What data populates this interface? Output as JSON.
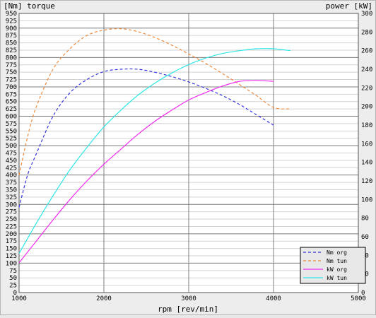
{
  "chart_data": {
    "type": "line",
    "title_left": "[Nm] torque",
    "title_right": "power [kW]",
    "xlabel": "rpm [rev/min]",
    "x_axis": {
      "ticks": [
        1000,
        2000,
        3000,
        4000,
        5000
      ],
      "range": [
        1000,
        5000
      ]
    },
    "y_left": {
      "range": [
        0,
        950
      ],
      "ticks": [
        0,
        25,
        50,
        75,
        100,
        125,
        150,
        175,
        200,
        225,
        250,
        275,
        300,
        325,
        350,
        375,
        400,
        425,
        450,
        475,
        500,
        525,
        550,
        575,
        600,
        625,
        650,
        675,
        700,
        725,
        750,
        775,
        800,
        825,
        850,
        875,
        900,
        925,
        950
      ]
    },
    "y_right": {
      "range": [
        0,
        300
      ],
      "ticks": [
        0,
        20,
        40,
        60,
        80,
        100,
        120,
        140,
        160,
        180,
        200,
        220,
        240,
        260,
        280,
        300
      ]
    },
    "grid": true,
    "legend_position": "bottom-right",
    "series": [
      {
        "name": "Nm org",
        "axis": "left",
        "style": "dashed",
        "color": "#3434e0",
        "x": [
          1000,
          1100,
          1200,
          1400,
          1600,
          1800,
          2000,
          2200,
          2400,
          2600,
          2800,
          3000,
          3200,
          3400,
          3600,
          3800,
          4000
        ],
        "y": [
          290,
          400,
          470,
          600,
          680,
          725,
          752,
          760,
          760,
          750,
          735,
          717,
          695,
          670,
          640,
          605,
          570
        ]
      },
      {
        "name": "Nm tun",
        "axis": "left",
        "style": "dashed",
        "color": "#ec8a3c",
        "x": [
          1000,
          1100,
          1200,
          1400,
          1600,
          1800,
          2000,
          2200,
          2400,
          2600,
          2800,
          3000,
          3200,
          3400,
          3600,
          3800,
          4000,
          4200
        ],
        "y": [
          400,
          530,
          630,
          760,
          830,
          875,
          893,
          898,
          888,
          868,
          842,
          812,
          780,
          745,
          708,
          670,
          630,
          625
        ]
      },
      {
        "name": "kW org",
        "axis": "right",
        "style": "solid",
        "color": "#f02cf0",
        "x": [
          1000,
          1200,
          1400,
          1600,
          1800,
          2000,
          2200,
          2400,
          2600,
          2800,
          3000,
          3200,
          3400,
          3600,
          3800,
          4000
        ],
        "y": [
          32,
          55,
          78,
          100,
          120,
          138,
          154,
          170,
          184,
          196,
          207,
          215,
          222,
          227,
          228,
          227
        ]
      },
      {
        "name": "kW tun",
        "axis": "right",
        "style": "solid",
        "color": "#2ee6e6",
        "x": [
          1000,
          1200,
          1400,
          1600,
          1800,
          2000,
          2200,
          2400,
          2600,
          2800,
          3000,
          3200,
          3400,
          3600,
          3800,
          4000,
          4200
        ],
        "y": [
          42,
          74,
          104,
          132,
          156,
          178,
          196,
          212,
          225,
          236,
          245,
          252,
          257,
          260,
          262,
          262,
          260
        ]
      }
    ]
  }
}
